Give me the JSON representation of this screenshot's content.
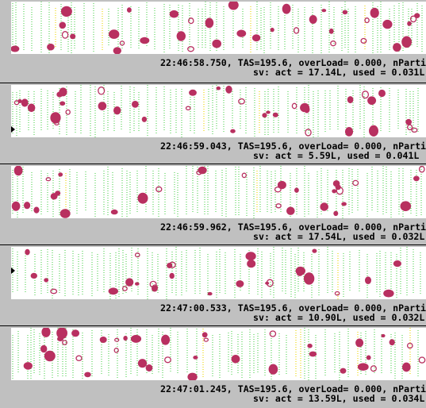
{
  "window": {
    "title": ""
  },
  "frames": [
    {
      "timestamp_line": "22:46:58.750, TAS=195.6, overLoad= 0.000, nPartic",
      "sv_line": "sv: act = 17.14L, used = 0.031L"
    },
    {
      "timestamp_line": "22:46:59.043, TAS=195.6, overLoad= 0.000, nPartic",
      "sv_line": "sv: act = 5.59L, used = 0.041L"
    },
    {
      "timestamp_line": "22:46:59.962, TAS=195.6, overLoad= 0.000, nPartic",
      "sv_line": "sv: act = 17.54L, used = 0.032L"
    },
    {
      "timestamp_line": "22:47:00.533, TAS=195.6, overLoad= 0.000, nPartic",
      "sv_line": "sv: act = 10.90L, used = 0.032L"
    },
    {
      "timestamp_line": "22:47:01.245, TAS=195.6, overLoad= 0.000, nPartic",
      "sv_line": "sv: act = 13.59L, used = 0.034L"
    }
  ],
  "colors": {
    "background": "#c0c0c0",
    "strip": "#ffffff",
    "particle": "#b83060",
    "timing_bar": "#3ccd3c",
    "timing_bar_alt": "#f0e040",
    "text": "#000000"
  }
}
